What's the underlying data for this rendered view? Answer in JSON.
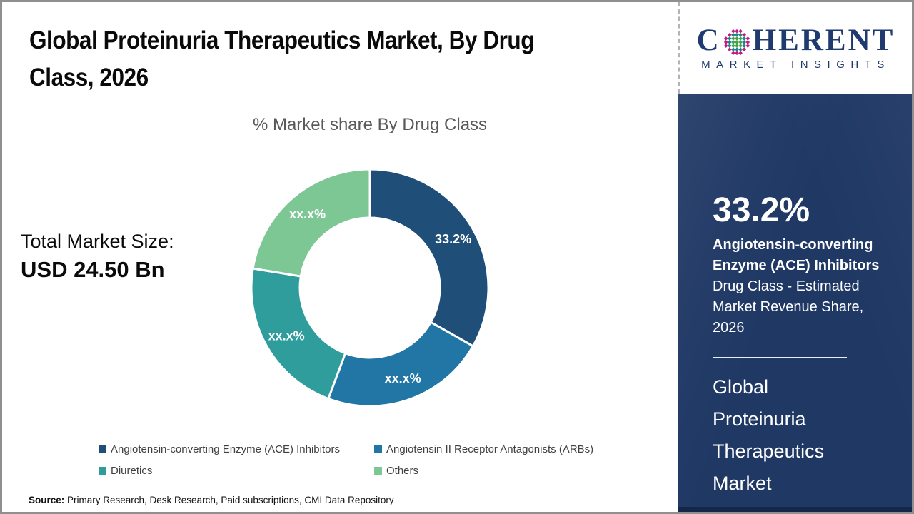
{
  "header": {
    "title": "Global Proteinuria Therapeutics Market, By Drug\nClass, 2026"
  },
  "logo": {
    "brand_c": "C",
    "brand_rest": "HERENT",
    "tagline": "MARKET INSIGHTS",
    "dot_colors": {
      "outer": "#c21a83",
      "mid": "#18848c",
      "inner": "#44a24e"
    }
  },
  "summary": {
    "total_label": "Total Market Size:",
    "total_value": "USD 24.50 Bn"
  },
  "chart_data": {
    "type": "pie",
    "subtype": "donut",
    "title": "% Market share By Drug Class",
    "legend_position": "bottom",
    "start_angle_deg": 0,
    "segments": [
      {
        "name": "Angiotensin-converting Enzyme (ACE) Inhibitors",
        "value": 33.2,
        "label": "33.2%",
        "color": "#1f4e79"
      },
      {
        "name": "Angiotensin II Receptor Antagonists (ARBs)",
        "value": 22.5,
        "label": "xx.x%",
        "color": "#2176a5"
      },
      {
        "name": "Diuretics",
        "value": 21.9,
        "label": "xx.x%",
        "color": "#2e9d9b"
      },
      {
        "name": "Others",
        "value": 22.4,
        "label": "xx.x%",
        "color": "#7cc794"
      }
    ]
  },
  "sidebar": {
    "stat_value": "33.2%",
    "stat_title": "Angiotensin-converting\nEnzyme (ACE) Inhibitors",
    "stat_desc": "Drug Class - Estimated\nMarket Revenue Share,\n2026",
    "market_name": "Global\nProteinuria\nTherapeutics\nMarket"
  },
  "source": {
    "label": "Source:",
    "text": " Primary Research, Desk Research, Paid subscriptions, CMI Data Repository"
  }
}
